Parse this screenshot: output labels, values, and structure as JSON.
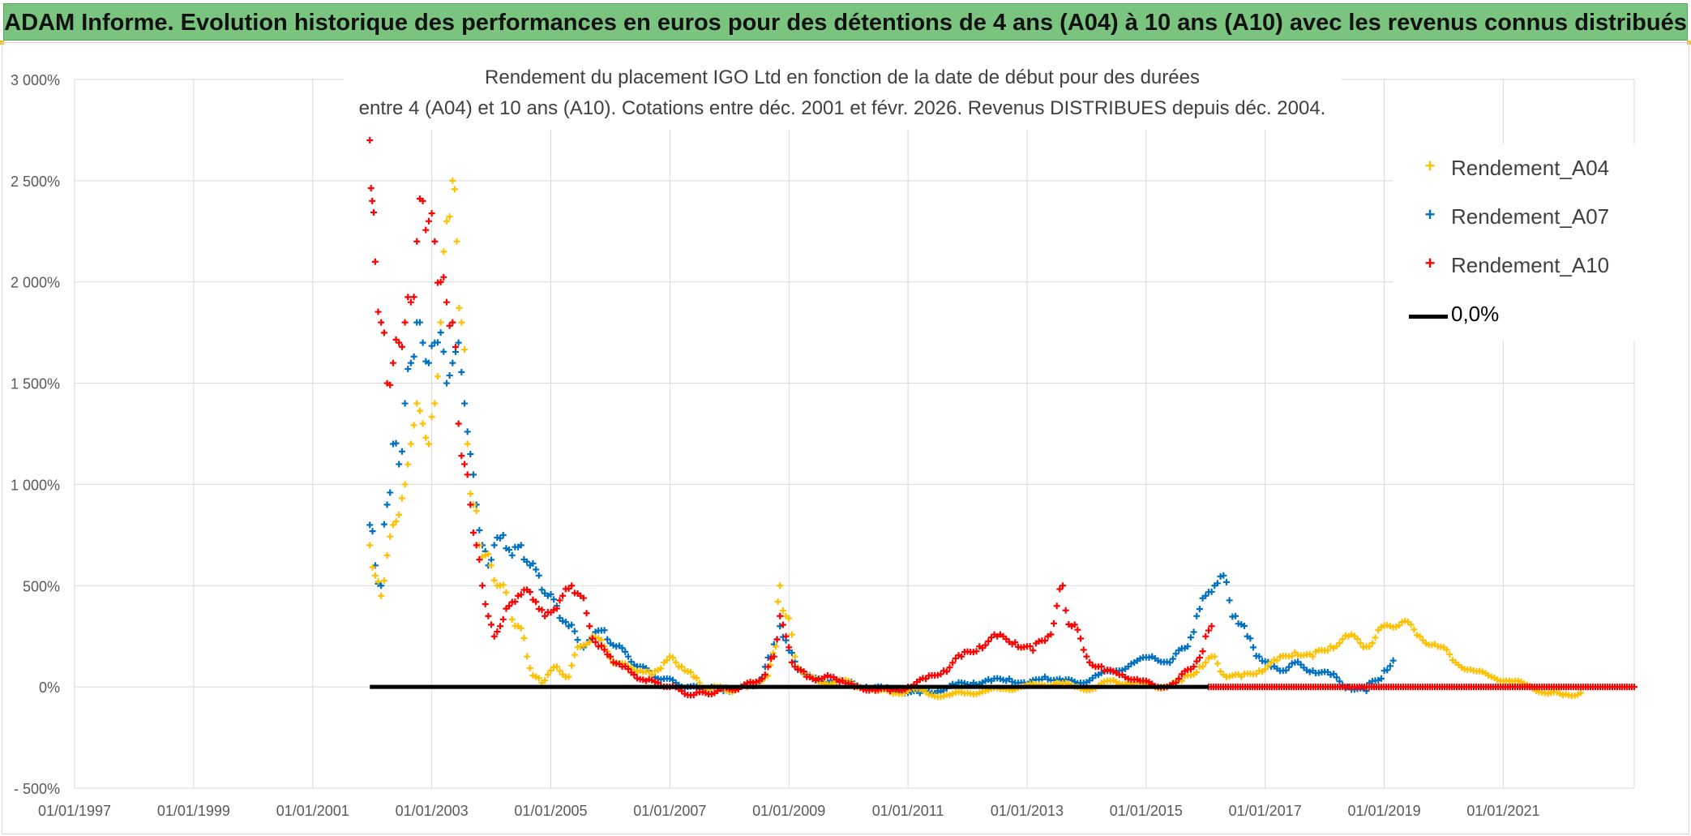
{
  "banner": {
    "title": "ADAM Informe. Evolution historique des performances en euros pour des détentions de 4 ans (A04) à 10 ans (A10) avec les revenus connus distribués"
  },
  "chart_data": {
    "type": "scatter",
    "title_line1": "Rendement du placement IGO Ltd  en fonction de la date de début pour des durées",
    "title_line2": "entre 4 (A04) et 10 ans (A10). Cotations entre déc. 2001 et févr. 2026. Revenus DISTRIBUES depuis déc. 2004.",
    "xlabel": "",
    "ylabel": "",
    "x_range": [
      1997.0,
      2023.2
    ],
    "ylim": [
      -500,
      3000
    ],
    "y_ticks": [
      -500,
      0,
      500,
      1000,
      1500,
      2000,
      2500,
      3000
    ],
    "y_tick_labels": [
      "- 500%",
      "0%",
      "500%",
      "1 000%",
      "1 500%",
      "2 000%",
      "2 500%",
      "3 000%"
    ],
    "x_ticks": [
      1997,
      1999,
      2001,
      2003,
      2005,
      2007,
      2009,
      2011,
      2013,
      2015,
      2017,
      2019,
      2021
    ],
    "x_tick_labels": [
      "01/01/1997",
      "01/01/1999",
      "01/01/2001",
      "01/01/2003",
      "01/01/2005",
      "01/01/2007",
      "01/01/2009",
      "01/01/2011",
      "01/01/2013",
      "01/01/2015",
      "01/01/2017",
      "01/01/2019",
      "01/01/2021"
    ],
    "grid": true,
    "legend_position": "top-right",
    "series": [
      {
        "name": "Rendement_A04",
        "color": "#ffc000",
        "marker": "+",
        "x": [
          2001.96,
          2002.05,
          2002.15,
          2002.25,
          2002.35,
          2002.45,
          2002.55,
          2002.65,
          2002.75,
          2002.85,
          2002.95,
          2003.05,
          2003.15,
          2003.25,
          2003.35,
          2003.42,
          2003.5,
          2003.6,
          2003.7,
          2003.8,
          2003.9,
          2004.0,
          2004.15,
          2004.3,
          2004.45,
          2004.6,
          2004.75,
          2004.85,
          2004.95,
          2005.1,
          2005.3,
          2005.5,
          2005.7,
          2005.9,
          2006.1,
          2006.3,
          2006.5,
          2006.7,
          2006.9,
          2007.0,
          2007.2,
          2007.4,
          2007.6,
          2007.8,
          2008.0,
          2008.3,
          2008.6,
          2008.78,
          2008.85,
          2008.95,
          2009.1,
          2009.3,
          2009.6,
          2009.9,
          2010.2,
          2010.5,
          2010.8,
          2011.1,
          2011.4,
          2011.7,
          2012.0,
          2012.3,
          2012.6,
          2012.9,
          2013.2,
          2013.5,
          2013.8,
          2014.1,
          2014.4,
          2014.7,
          2015.0,
          2015.3,
          2015.6,
          2015.9,
          2016.1,
          2016.3,
          2016.6,
          2016.9,
          2017.2,
          2017.5,
          2017.8,
          2018.1,
          2018.4,
          2018.7,
          2018.9,
          2019.1,
          2019.3,
          2019.6,
          2019.9,
          2020.2,
          2020.5,
          2020.8,
          2021.1,
          2021.4,
          2021.7,
          2022.0,
          2022.3
        ],
        "y": [
          700,
          550,
          450,
          650,
          800,
          850,
          1000,
          1200,
          1400,
          1300,
          1200,
          1400,
          1800,
          2300,
          2500,
          2200,
          1800,
          1200,
          900,
          700,
          650,
          600,
          500,
          400,
          300,
          150,
          50,
          20,
          60,
          100,
          50,
          200,
          250,
          200,
          120,
          100,
          80,
          60,
          120,
          150,
          100,
          50,
          -10,
          0,
          -20,
          0,
          50,
          200,
          500,
          350,
          150,
          50,
          20,
          30,
          0,
          -20,
          -30,
          -10,
          -40,
          -40,
          -30,
          -20,
          -10,
          0,
          10,
          20,
          0,
          -10,
          30,
          20,
          10,
          0,
          30,
          100,
          150,
          60,
          50,
          80,
          130,
          170,
          150,
          200,
          250,
          200,
          280,
          300,
          320,
          250,
          200,
          120,
          80,
          50,
          30,
          10,
          -30,
          -40,
          -30
        ]
      },
      {
        "name": "Rendement_A07",
        "color": "#0070c0",
        "marker": "+",
        "x": [
          2001.96,
          2002.05,
          2002.15,
          2002.25,
          2002.35,
          2002.45,
          2002.55,
          2002.65,
          2002.75,
          2002.85,
          2002.95,
          2003.05,
          2003.15,
          2003.25,
          2003.35,
          2003.45,
          2003.55,
          2003.65,
          2003.75,
          2003.85,
          2003.95,
          2004.05,
          2004.2,
          2004.35,
          2004.5,
          2004.65,
          2004.8,
          2004.95,
          2005.1,
          2005.3,
          2005.5,
          2005.7,
          2005.9,
          2006.1,
          2006.3,
          2006.5,
          2006.7,
          2006.9,
          2007.1,
          2007.3,
          2007.5,
          2007.7,
          2007.9,
          2008.1,
          2008.3,
          2008.5,
          2008.7,
          2008.85,
          2009.0,
          2009.2,
          2009.4,
          2009.7,
          2010.0,
          2010.3,
          2010.6,
          2010.9,
          2011.2,
          2011.5,
          2011.8,
          2012.1,
          2012.4,
          2012.7,
          2013.0,
          2013.3,
          2013.6,
          2013.9,
          2014.2,
          2014.5,
          2014.8,
          2015.1,
          2015.4,
          2015.7,
          2015.85,
          2016.0,
          2016.15,
          2016.3,
          2016.5,
          2016.7,
          2016.9,
          2017.1,
          2017.3,
          2017.5,
          2017.8,
          2018.1,
          2018.4,
          2018.7,
          2019.0,
          2019.15
        ],
        "y": [
          800,
          600,
          500,
          900,
          1200,
          1100,
          1400,
          1600,
          1800,
          1700,
          1600,
          1700,
          1750,
          1500,
          1600,
          1700,
          1400,
          1150,
          900,
          700,
          600,
          700,
          750,
          650,
          700,
          600,
          550,
          450,
          400,
          300,
          200,
          250,
          280,
          200,
          150,
          100,
          60,
          40,
          20,
          0,
          -10,
          0,
          -20,
          -10,
          0,
          20,
          150,
          300,
          180,
          80,
          40,
          30,
          20,
          0,
          -10,
          -20,
          -30,
          -20,
          10,
          20,
          30,
          40,
          10,
          50,
          30,
          20,
          60,
          80,
          120,
          150,
          120,
          200,
          350,
          450,
          500,
          550,
          350,
          250,
          150,
          100,
          80,
          120,
          80,
          60,
          0,
          -20,
          80,
          130
        ]
      },
      {
        "name": "Rendement_A10",
        "color": "#ff0000",
        "marker": "+",
        "x": [
          2001.96,
          2002.0,
          2002.05,
          2002.15,
          2002.25,
          2002.35,
          2002.45,
          2002.55,
          2002.65,
          2002.75,
          2002.85,
          2002.95,
          2003.05,
          2003.15,
          2003.25,
          2003.35,
          2003.45,
          2003.55,
          2003.65,
          2003.75,
          2003.85,
          2003.95,
          2004.05,
          2004.15,
          2004.3,
          2004.45,
          2004.6,
          2004.75,
          2004.9,
          2005.05,
          2005.2,
          2005.35,
          2005.5,
          2005.65,
          2005.8,
          2006.0,
          2006.2,
          2006.4,
          2006.6,
          2006.8,
          2007.0,
          2007.2,
          2007.4,
          2007.6,
          2007.8,
          2008.0,
          2008.2,
          2008.4,
          2008.6,
          2008.75,
          2008.85,
          2008.95,
          2009.1,
          2009.3,
          2009.5,
          2009.7,
          2009.9,
          2010.1,
          2010.4,
          2010.7,
          2011.0,
          2011.3,
          2011.6,
          2011.9,
          2012.2,
          2012.5,
          2012.8,
          2013.1,
          2013.35,
          2013.5,
          2013.6,
          2013.75,
          2014.0,
          2014.3,
          2014.6,
          2014.9,
          2015.2,
          2015.5,
          2015.8,
          2016.0,
          2016.1
        ],
        "y": [
          2700,
          2400,
          2100,
          1800,
          1500,
          1600,
          1700,
          1800,
          1900,
          2200,
          2400,
          2300,
          2200,
          2000,
          1900,
          1800,
          1300,
          1100,
          900,
          700,
          500,
          350,
          250,
          300,
          400,
          450,
          480,
          420,
          350,
          380,
          450,
          500,
          450,
          300,
          200,
          150,
          100,
          60,
          30,
          20,
          0,
          -20,
          -40,
          -30,
          -20,
          -10,
          0,
          20,
          60,
          150,
          350,
          250,
          100,
          50,
          40,
          50,
          30,
          0,
          -10,
          -20,
          0,
          40,
          80,
          150,
          200,
          250,
          220,
          180,
          250,
          400,
          500,
          300,
          150,
          80,
          60,
          30,
          0,
          20,
          100,
          250,
          300
        ]
      },
      {
        "name": "0,0%",
        "color": "#000000",
        "marker": "line",
        "x": [
          2001.96,
          2016.05
        ],
        "y": [
          0,
          0
        ]
      }
    ],
    "a10_zero_tail": {
      "x_start": 2016.05,
      "x_end": 2023.2,
      "y": 0
    }
  }
}
